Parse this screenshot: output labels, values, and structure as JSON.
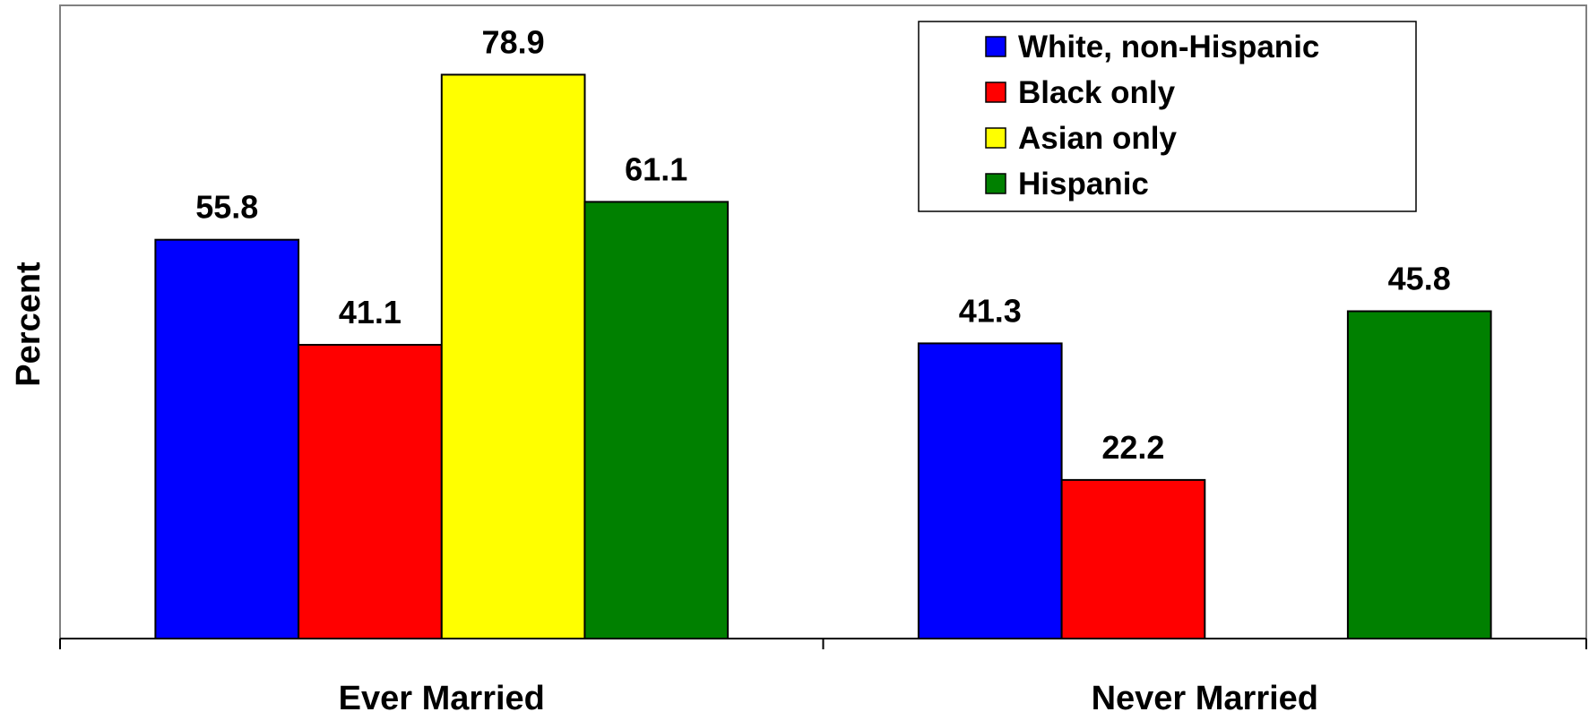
{
  "chart_data": {
    "type": "bar",
    "title": "",
    "xlabel": "",
    "ylabel": "Percent",
    "ylim": [
      0,
      88.6
    ],
    "grid": false,
    "legend_placement": "top-right",
    "categories": [
      "Ever Married",
      "Never Married"
    ],
    "series": [
      {
        "name": "White, non-Hispanic",
        "color": "#0000FF",
        "values": [
          55.8,
          41.3
        ]
      },
      {
        "name": "Black only",
        "color": "#FF0000",
        "values": [
          41.1,
          22.2
        ]
      },
      {
        "name": "Asian only",
        "color": "#FFFF00",
        "values": [
          78.9,
          null
        ]
      },
      {
        "name": "Hispanic",
        "color": "#008000",
        "values": [
          61.1,
          45.8
        ]
      }
    ]
  }
}
